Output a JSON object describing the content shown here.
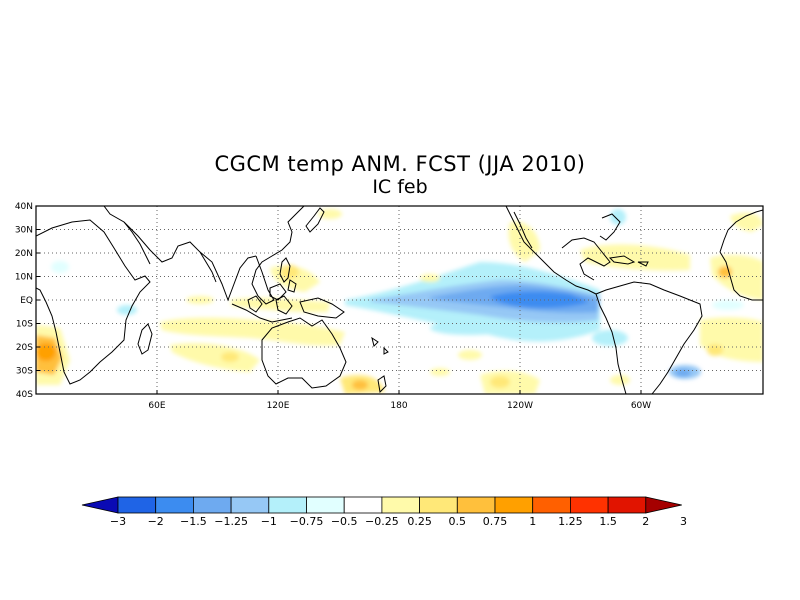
{
  "title_line1": "CGCM temp ANM. FCST  (JJA 2010)",
  "title_line2": "IC feb",
  "map": {
    "lat_labels": [
      "40N",
      "30N",
      "20N",
      "10N",
      "EQ",
      "10S",
      "20S",
      "30S",
      "40S"
    ],
    "lon_labels": [
      "60E",
      "120E",
      "180",
      "120W",
      "60W"
    ]
  },
  "colorbar": {
    "levels": [
      "-3",
      "-2",
      "-1.5",
      "-1.25",
      "-1",
      "-0.75",
      "-0.5",
      "-0.25",
      "0.25",
      "0.5",
      "0.75",
      "1",
      "1.25",
      "1.5",
      "2",
      "3"
    ],
    "colors": [
      "#0a0ab4",
      "#1f64e6",
      "#3c8cf0",
      "#6eaaf0",
      "#96c8f5",
      "#b4f0fa",
      "#e1ffff",
      "#ffffff",
      "#fffaaa",
      "#ffe878",
      "#ffc03c",
      "#ffa000",
      "#ff6000",
      "#ff3200",
      "#e11400",
      "#a50000"
    ]
  },
  "colors": {
    "land_outline": "#000000",
    "grid": "#666666"
  }
}
